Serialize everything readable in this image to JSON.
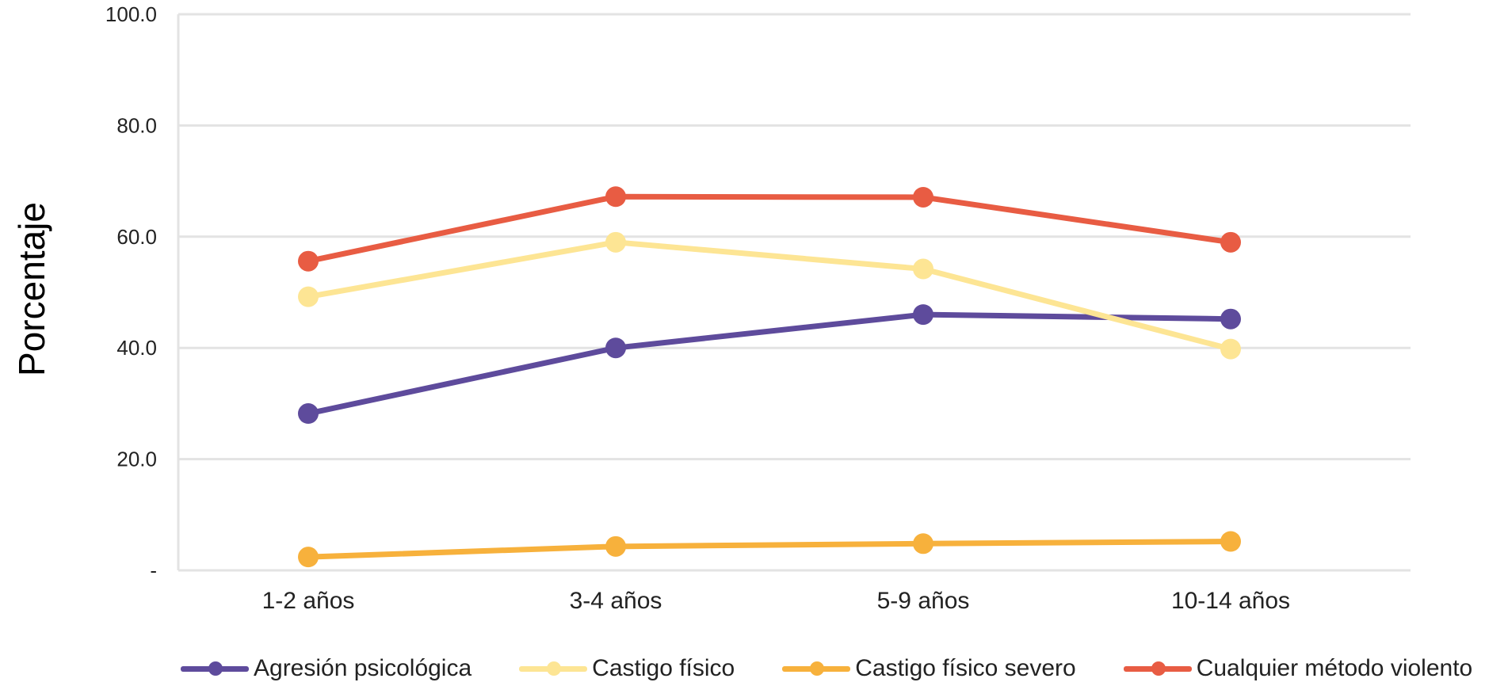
{
  "chart_data": {
    "type": "line",
    "categories": [
      "1-2 años",
      "3-4 años",
      "5-9 años",
      "10-14 años"
    ],
    "ylabel": "Porcentaje",
    "ylim": [
      0,
      100
    ],
    "yticks": [
      "-",
      "20.0",
      "40.0",
      "60.0",
      "80.0",
      "100.0"
    ],
    "grid": true,
    "legend_position": "bottom",
    "series": [
      {
        "name": "Agresión psicológica",
        "color": "#5e4b9c",
        "values": [
          28.2,
          40.0,
          46.0,
          45.2
        ]
      },
      {
        "name": "Castigo físico",
        "color": "#fde594",
        "values": [
          49.2,
          59.0,
          54.2,
          39.8
        ]
      },
      {
        "name": "Castigo físico severo",
        "color": "#f7b13c",
        "values": [
          2.4,
          4.3,
          4.8,
          5.2
        ]
      },
      {
        "name": "Cualquier método violento",
        "color": "#e85c43",
        "values": [
          55.6,
          67.2,
          67.1,
          59.0
        ]
      }
    ]
  }
}
